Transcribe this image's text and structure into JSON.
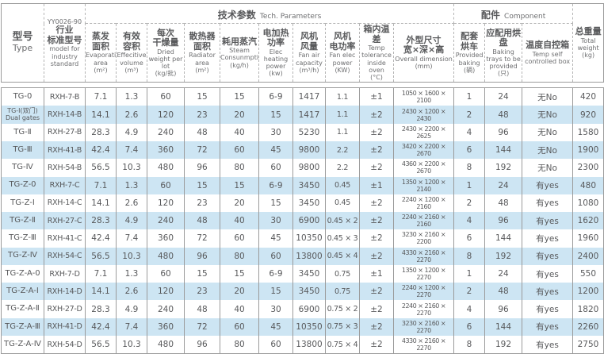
{
  "page": {
    "background": "#ffffff",
    "stripe_color": "#cde5f3",
    "border_color": "#9b9b9b",
    "text_color": "#58595b"
  },
  "table": {
    "header": {
      "type_col": {
        "zh": "型号",
        "en": "Type"
      },
      "model_col": {
        "code": "YY0026-90",
        "zh": "行业\n标准型号",
        "en": "model for industry standard"
      },
      "groups": {
        "tech": {
          "zh": "技术参数",
          "en": "Tech. Parameters"
        },
        "component": {
          "zh": "配件",
          "en": "Component"
        }
      },
      "columns": [
        {
          "zh": "蒸发\n面积",
          "en": "Evaporative area",
          "unit": "(m²)"
        },
        {
          "zh": "有效\n容积",
          "en": "Effecitive volume",
          "unit": "(m³)"
        },
        {
          "zh": "每次\n干燥量",
          "en": "Dried weight per lot",
          "unit": "(kg/批)"
        },
        {
          "zh": "散热器\n面积",
          "en": "Radiator area",
          "unit": "(m²)"
        },
        {
          "zh": "耗用蒸汽",
          "en": "Steam Consunmption",
          "unit": "(kg/h)"
        },
        {
          "zh": "电加热\n功率",
          "en": "Elec heating power",
          "unit": "(kw)"
        },
        {
          "zh": "风机\n风量",
          "en": "Fan air capacity",
          "unit": "(m³/h)"
        },
        {
          "zh": "风机\n电功率",
          "en": "Fan elec power",
          "unit": "(KW)"
        },
        {
          "zh": "箱内温差",
          "en": "Temp tolerance inside oven",
          "unit": "(°C)"
        },
        {
          "zh": "外型尺寸\n宽×深×高",
          "en": "Overall dimension",
          "unit": "(mm)"
        },
        {
          "zh": "配套\n烘车",
          "en": "Provided baking",
          "unit": "(辆)"
        },
        {
          "zh": "应配用烘盘",
          "en": "Baking trays to be provided",
          "unit": "(只)"
        },
        {
          "zh": "温度自控箱",
          "en": "Temp self controlled box",
          "unit": ""
        },
        {
          "zh": "总重量",
          "en": "Total weight",
          "unit": "(kg)"
        }
      ]
    },
    "rows": [
      [
        "TG-0",
        "RXH-7-B",
        "7.1",
        "1.3",
        "60",
        "15",
        "15",
        "6-9",
        "1417",
        "1.1",
        "±1",
        "1050 × 1600 × 2100",
        "1",
        "24",
        "无No",
        "420"
      ],
      [
        "TG-Ⅰ(双门)\nDual gates",
        "RXH-14-B",
        "14.1",
        "2.6",
        "120",
        "23",
        "20",
        "15",
        "1417",
        "1.1",
        "±2",
        "2430 × 1200 × 2430",
        "2",
        "48",
        "无No",
        "920"
      ],
      [
        "TG-Ⅱ",
        "RXH-27-B",
        "28.3",
        "4.9",
        "240",
        "48",
        "40",
        "30",
        "5230",
        "1.1",
        "±2",
        "2430 × 2200 × 2625",
        "4",
        "96",
        "无No",
        "1580"
      ],
      [
        "TG-Ⅲ",
        "RXH-41-B",
        "42.4",
        "7.4",
        "360",
        "72",
        "60",
        "45",
        "9800",
        "2.2",
        "±2",
        "3420 × 2200 × 2670",
        "6",
        "144",
        "无No",
        "1900"
      ],
      [
        "TG-Ⅳ",
        "RXH-54-B",
        "56.5",
        "10.3",
        "480",
        "96",
        "80",
        "60",
        "9800",
        "2.2",
        "±2",
        "4360 × 2200 × 2670",
        "8",
        "192",
        "无No",
        "2300"
      ],
      [
        "TG-Z-0",
        "RXH-7-C",
        "7.1",
        "1.3",
        "60",
        "15",
        "15",
        "6-9",
        "3450",
        "0.45",
        "±1",
        "1350 × 1200 × 2140",
        "1",
        "24",
        "有yes",
        "480"
      ],
      [
        "TG-Z-Ⅰ",
        "RXH-14-C",
        "14.1",
        "2.6",
        "120",
        "23",
        "20",
        "15",
        "3450",
        "0.45",
        "±2",
        "2240 × 1200 × 2160",
        "2",
        "48",
        "有yes",
        "1080"
      ],
      [
        "TG-Z-Ⅱ",
        "RXH-27-C",
        "28.3",
        "4.9",
        "240",
        "48",
        "40",
        "30",
        "6900",
        "0.45 × 2",
        "±2",
        "2240 × 2160 × 2160",
        "4",
        "96",
        "有yes",
        "1620"
      ],
      [
        "TG-Z-Ⅲ",
        "RXH-41-C",
        "42.4",
        "7.4",
        "360",
        "72",
        "60",
        "45",
        "10350",
        "0.45 × 3",
        "±2",
        "3230 × 2160 × 2200",
        "6",
        "144",
        "有yes",
        "1960"
      ],
      [
        "TG-Z-Ⅳ",
        "RXH-54-C",
        "56.5",
        "10.3",
        "480",
        "96",
        "80",
        "60",
        "13800",
        "0.45 × 4",
        "±2",
        "4330 × 2160 × 2270",
        "8",
        "192",
        "有yes",
        "2400"
      ],
      [
        "TG-Z-A-0",
        "RXH-7-D",
        "7.1",
        "1.3",
        "60",
        "15",
        "15",
        "6-9",
        "3450",
        "0.75",
        "±1",
        "1350 × 1200 × 2270",
        "1",
        "24",
        "有yes",
        "550"
      ],
      [
        "TG-Z-A-Ⅰ",
        "RXH-14-D",
        "14.1",
        "2.6",
        "120",
        "23",
        "20",
        "15",
        "3450",
        "0.75",
        "±2",
        "2240 × 1200 × 2270",
        "2",
        "48",
        "有yes",
        "1200"
      ],
      [
        "TG-Z-A-Ⅱ",
        "RXH-27-D",
        "28.3",
        "4.9",
        "240",
        "48",
        "40",
        "30",
        "6900",
        "0.75 × 2",
        "±2",
        "2240 × 2160 × 2270",
        "4",
        "96",
        "有yes",
        "1820"
      ],
      [
        "TG-Z-A-Ⅲ",
        "RXH-41-D",
        "42.4",
        "7.4",
        "360",
        "72",
        "60",
        "45",
        "10350",
        "0.75 × 3",
        "±2",
        "3230 × 2160 × 2270",
        "6",
        "144",
        "有yes",
        "2260"
      ],
      [
        "TG-Z-A-Ⅳ",
        "RXH-54-D",
        "56.5",
        "10.3",
        "480",
        "96",
        "80",
        "60",
        "13800",
        "0.75 × 4",
        "±2",
        "4330 × 2160 × 2270",
        "8",
        "192",
        "有yes",
        "2750"
      ]
    ]
  }
}
